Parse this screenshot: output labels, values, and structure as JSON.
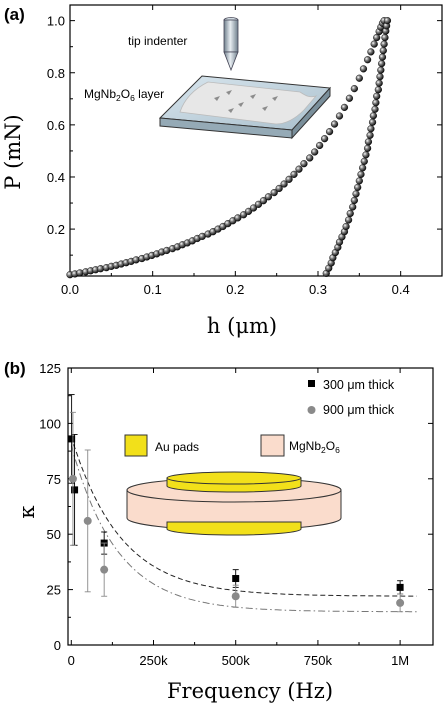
{
  "chart_data": [
    {
      "panel_label": "(a)",
      "type": "scatter",
      "xlabel": "h (μm)",
      "ylabel": "P (mN)",
      "xlim": [
        0.0,
        0.45
      ],
      "ylim": [
        0.02,
        1.06
      ],
      "xticks": [
        "0.0",
        "0.1",
        "0.2",
        "0.3",
        "0.4"
      ],
      "yticks": [
        "0.2",
        "0.4",
        "0.6",
        "0.8",
        "1.0"
      ],
      "inset": {
        "indenter_label": "tip indenter",
        "layer_label_pre": "MgNb",
        "layer_label_sub1": "2",
        "layer_label_mid": "O",
        "layer_label_sub2": "6",
        "layer_label_post": " layer"
      },
      "series": [
        {
          "marker": "filled-circle",
          "x": [
            0.0,
            0.006,
            0.012,
            0.019,
            0.025,
            0.031,
            0.037,
            0.044,
            0.05,
            0.056,
            0.062,
            0.068,
            0.074,
            0.08,
            0.087,
            0.093,
            0.099,
            0.105,
            0.111,
            0.117,
            0.124,
            0.13,
            0.136,
            0.142,
            0.148,
            0.154,
            0.16,
            0.167,
            0.173,
            0.179,
            0.185,
            0.191,
            0.197,
            0.203,
            0.21,
            0.216,
            0.222,
            0.228,
            0.234,
            0.24,
            0.247,
            0.253,
            0.259,
            0.265,
            0.271,
            0.277,
            0.283,
            0.29,
            0.296,
            0.302,
            0.308,
            0.314,
            0.32,
            0.326,
            0.332,
            0.338,
            0.344,
            0.35,
            0.355,
            0.36,
            0.364,
            0.368,
            0.371,
            0.374,
            0.376,
            0.378,
            0.38
          ],
          "y": [
            0.025,
            0.028,
            0.032,
            0.036,
            0.04,
            0.044,
            0.048,
            0.052,
            0.057,
            0.061,
            0.066,
            0.071,
            0.076,
            0.082,
            0.087,
            0.093,
            0.099,
            0.105,
            0.112,
            0.118,
            0.125,
            0.132,
            0.14,
            0.147,
            0.155,
            0.164,
            0.172,
            0.181,
            0.19,
            0.2,
            0.21,
            0.221,
            0.232,
            0.243,
            0.255,
            0.268,
            0.281,
            0.295,
            0.309,
            0.324,
            0.34,
            0.356,
            0.373,
            0.391,
            0.41,
            0.43,
            0.451,
            0.473,
            0.496,
            0.521,
            0.547,
            0.574,
            0.603,
            0.634,
            0.667,
            0.702,
            0.739,
            0.779,
            0.815,
            0.85,
            0.88,
            0.91,
            0.935,
            0.958,
            0.975,
            0.99,
            1.0
          ]
        },
        {
          "marker": "filled-circle",
          "x": [
            0.31,
            0.313,
            0.316,
            0.318,
            0.321,
            0.324,
            0.326,
            0.329,
            0.332,
            0.334,
            0.337,
            0.339,
            0.342,
            0.344,
            0.346,
            0.348,
            0.35,
            0.352,
            0.354,
            0.356,
            0.358,
            0.36,
            0.361,
            0.363,
            0.364,
            0.366,
            0.367,
            0.369,
            0.37,
            0.371,
            0.373,
            0.374,
            0.375,
            0.376,
            0.377,
            0.378,
            0.379,
            0.38,
            0.381,
            0.382,
            0.383,
            0.384
          ],
          "y": [
            0.03,
            0.05,
            0.07,
            0.09,
            0.11,
            0.13,
            0.15,
            0.17,
            0.19,
            0.21,
            0.235,
            0.26,
            0.285,
            0.31,
            0.335,
            0.36,
            0.385,
            0.41,
            0.435,
            0.46,
            0.485,
            0.51,
            0.535,
            0.56,
            0.585,
            0.61,
            0.635,
            0.66,
            0.685,
            0.71,
            0.735,
            0.76,
            0.785,
            0.81,
            0.835,
            0.86,
            0.885,
            0.91,
            0.935,
            0.96,
            0.98,
            1.0
          ]
        }
      ]
    },
    {
      "panel_label": "(b)",
      "type": "scatter",
      "xlabel": "Frequency (Hz)",
      "ylabel": "κ",
      "xlim": [
        -10000,
        1100000
      ],
      "ylim": [
        0,
        125
      ],
      "xticks": [
        {
          "value": 0,
          "label": "0"
        },
        {
          "value": 250000,
          "label": "250k"
        },
        {
          "value": 500000,
          "label": "500k"
        },
        {
          "value": 750000,
          "label": "750k"
        },
        {
          "value": 1000000,
          "label": "1M"
        }
      ],
      "yticks": [
        0,
        25,
        50,
        75,
        100,
        125
      ],
      "legend_position": "top-right",
      "inset": {
        "pads_label": "Au pads",
        "substrate_label_pre": "MgNb",
        "substrate_label_sub1": "2",
        "substrate_label_mid": "O",
        "substrate_label_sub2": "6",
        "pads_color": "#f2e01a",
        "substrate_color": "#fadccc"
      },
      "series": [
        {
          "name": "300 μm thick",
          "marker": "square",
          "color": "#000000",
          "x": [
            1000,
            10000,
            100000,
            500000,
            1000000
          ],
          "y": [
            93,
            70,
            46,
            30,
            26
          ],
          "err": [
            20,
            25,
            5,
            4,
            3
          ],
          "fit": {
            "style": "dashed",
            "color": "#222222",
            "A": 22,
            "B": 72,
            "tau": 150000
          }
        },
        {
          "name": "900 μm thick",
          "marker": "circle",
          "color": "#8a8a8a",
          "x": [
            5000,
            50000,
            100000,
            500000,
            1000000
          ],
          "y": [
            75,
            56,
            34,
            22,
            19
          ],
          "err": [
            30,
            32,
            12,
            5,
            4
          ],
          "fit": {
            "style": "dash-dot",
            "color": "#777777",
            "A": 15,
            "B": 75,
            "tau": 140000
          }
        }
      ]
    }
  ]
}
